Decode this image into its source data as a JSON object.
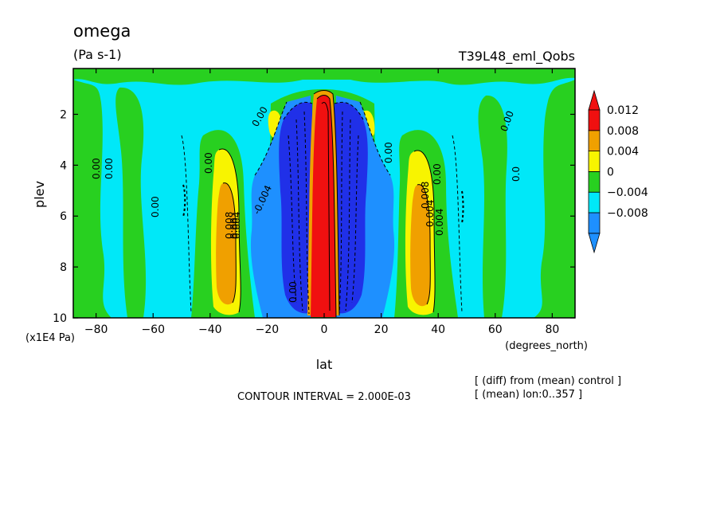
{
  "header": {
    "title": "omega",
    "units": "(Pa s-1)",
    "run": "T39L48_eml_Qobs"
  },
  "footer": {
    "contour_interval": "CONTOUR INTERVAL = 2.000E-03",
    "note1": "[ (diff) from (mean) control ]",
    "note2": "[ (mean) lon:0..357 ]"
  },
  "colors": {
    "red": "#f01010",
    "orange": "#f0a000",
    "yellow": "#f8f400",
    "green": "#28d020",
    "cyan": "#00e8f8",
    "blue": "#1e90ff",
    "darkblue": "#2030e8"
  },
  "chart_data": {
    "type": "heatmap",
    "title": "omega",
    "subtitle": "(Pa s-1)",
    "xlabel": "lat",
    "ylabel": "plev",
    "x_unit": "(degrees_north)",
    "y_unit": "(x1E4 Pa)",
    "xlim": [
      -88,
      88
    ],
    "ylim": [
      10,
      0.2
    ],
    "x_ticks": [
      -80,
      -60,
      -40,
      -20,
      0,
      20,
      40,
      60,
      80
    ],
    "x_tick_labels": [
      "−80",
      "−60",
      "−40",
      "−20",
      "0",
      "20",
      "40",
      "60",
      "80"
    ],
    "y_ticks": [
      2,
      4,
      6,
      8,
      10
    ],
    "y_tick_labels": [
      "2",
      "4",
      "6",
      "8",
      "10"
    ],
    "contour_interval": 0.002,
    "colorbar": {
      "levels": [
        -0.008,
        -0.004,
        0,
        0.004,
        0.008,
        0.012
      ],
      "labels": [
        "−0.008",
        "−0.004",
        "0",
        "0.004",
        "0.008",
        "0.012"
      ],
      "colors": [
        "#1e90ff",
        "#00e8f8",
        "#28d020",
        "#f8f400",
        "#f0a000",
        "#f01010"
      ],
      "extend": "both"
    },
    "contour_labels": [
      "0.00",
      "0.00",
      "0.00",
      "0.00",
      "0.00",
      "0.00",
      "0.00",
      "0.00",
      "0.00",
      "0.00",
      "0.0",
      "-0.004",
      "0.008",
      "0.004",
      "0.004",
      "0.004",
      "0.008"
    ],
    "series": [
      {
        "name": "-0.008",
        "lat": [
          -8,
          8
        ],
        "plev": [
          0.9,
          9.9
        ]
      },
      {
        "name": "0.012",
        "lat": [
          -3,
          3
        ],
        "plev": [
          0.6,
          10
        ]
      },
      {
        "name": "0.008",
        "lat": [
          -38,
          -32
        ],
        "plev": [
          2.2,
          9.8
        ]
      },
      {
        "name": "0.008",
        "lat": [
          32,
          38
        ],
        "plev": [
          2.2,
          9.8
        ]
      },
      {
        "name": "-0.004",
        "lat": [
          -15,
          15
        ],
        "plev": [
          0.9,
          9.9
        ]
      }
    ]
  }
}
